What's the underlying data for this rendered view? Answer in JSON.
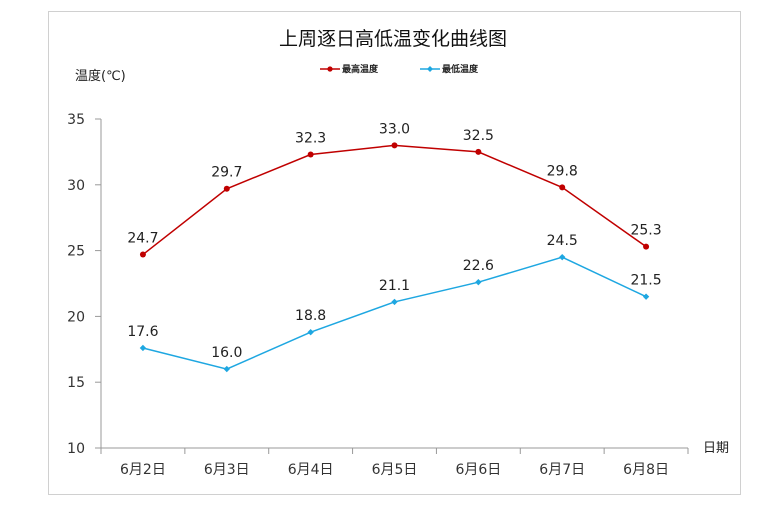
{
  "chart_data": {
    "type": "line",
    "title": "上周逐日高低温变化曲线图",
    "ylabel": "温度(℃)",
    "xlabel": "日期",
    "categories": [
      "6月2日",
      "6月3日",
      "6月4日",
      "6月5日",
      "6月6日",
      "6月7日",
      "6月8日"
    ],
    "ylim": [
      10,
      35
    ],
    "yticks": [
      10,
      15,
      20,
      25,
      30,
      35
    ],
    "grid": false,
    "legend_position": "top-center",
    "series": [
      {
        "name": "最高温度",
        "values": [
          24.7,
          29.7,
          32.3,
          33.0,
          32.5,
          29.8,
          25.3
        ],
        "color": "#c00000",
        "marker": "circle"
      },
      {
        "name": "最低温度",
        "values": [
          17.6,
          16.0,
          18.8,
          21.1,
          22.6,
          24.5,
          21.5
        ],
        "color": "#1ea7e1",
        "marker": "diamond"
      }
    ]
  }
}
